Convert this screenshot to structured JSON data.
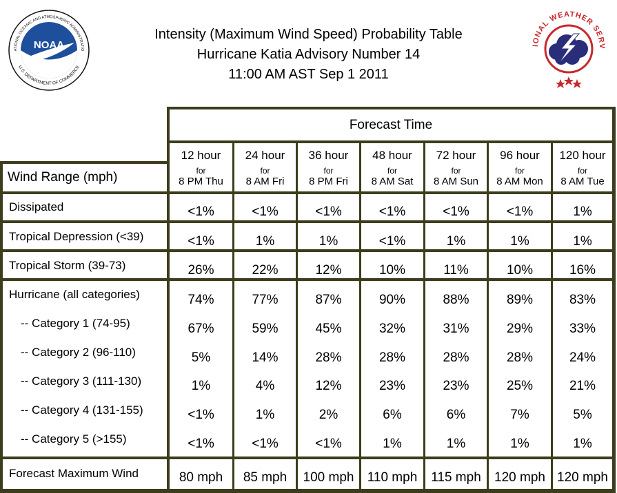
{
  "title": {
    "line1": "Intensity (Maximum Wind Speed) Probability Table",
    "line2": "Hurricane Katia Advisory Number 14",
    "line3": "11:00 AM AST Sep 1 2011"
  },
  "logos": {
    "noaa": {
      "center_text": "NOAA",
      "ring_top": "NATIONAL OCEANIC AND ATMOSPHERIC ADMINISTRATION",
      "ring_bottom": "U.S. DEPARTMENT OF COMMERCE"
    },
    "nws": {
      "ring_text": "NATIONAL WEATHER SERVICE"
    }
  },
  "table": {
    "forecast_time_label": "Forecast Time",
    "wind_range_label": "Wind Range (mph)",
    "columns": [
      {
        "hours": "12 hour",
        "for": "for",
        "when": "8 PM Thu"
      },
      {
        "hours": "24 hour",
        "for": "for",
        "when": "8 AM Fri"
      },
      {
        "hours": "36 hour",
        "for": "for",
        "when": "8 PM Fri"
      },
      {
        "hours": "48 hour",
        "for": "for",
        "when": "8 AM Sat"
      },
      {
        "hours": "72 hour",
        "for": "for",
        "when": "8 AM Sun"
      },
      {
        "hours": "96 hour",
        "for": "for",
        "when": "8 AM Mon"
      },
      {
        "hours": "120 hour",
        "for": "for",
        "when": "8 AM Tue"
      }
    ],
    "rows": [
      {
        "label": "Dissipated",
        "values": [
          "<1%",
          "<1%",
          "<1%",
          "<1%",
          "<1%",
          "<1%",
          "1%"
        ]
      },
      {
        "label": "Tropical Depression (<39)",
        "values": [
          "<1%",
          "1%",
          "1%",
          "<1%",
          "1%",
          "1%",
          "1%"
        ]
      },
      {
        "label": "Tropical Storm (39-73)",
        "values": [
          "26%",
          "22%",
          "12%",
          "10%",
          "11%",
          "10%",
          "16%"
        ]
      },
      {
        "label": "Hurricane (all categories)",
        "values": [
          "74%",
          "77%",
          "87%",
          "90%",
          "88%",
          "89%",
          "83%"
        ]
      },
      {
        "label": "-- Category 1 (74-95)",
        "values": [
          "67%",
          "59%",
          "45%",
          "32%",
          "31%",
          "29%",
          "33%"
        ]
      },
      {
        "label": "-- Category 2 (96-110)",
        "values": [
          "5%",
          "14%",
          "28%",
          "28%",
          "28%",
          "28%",
          "24%"
        ]
      },
      {
        "label": "-- Category 3 (111-130)",
        "values": [
          "1%",
          "4%",
          "12%",
          "23%",
          "23%",
          "25%",
          "21%"
        ]
      },
      {
        "label": "-- Category 4 (131-155)",
        "values": [
          "<1%",
          "1%",
          "2%",
          "6%",
          "6%",
          "7%",
          "5%"
        ]
      },
      {
        "label": "-- Category 5 (>155)",
        "values": [
          "<1%",
          "<1%",
          "<1%",
          "1%",
          "1%",
          "1%",
          "1%"
        ]
      }
    ],
    "max_wind_label": "Forecast Maximum Wind",
    "max_wind_values": [
      "80 mph",
      "85 mph",
      "100 mph",
      "110 mph",
      "115 mph",
      "120 mph",
      "120 mph"
    ]
  },
  "colors": {
    "border": "#3d3d1d",
    "noaa_blue": "#1e4f9c",
    "nws_red": "#c8282d"
  }
}
